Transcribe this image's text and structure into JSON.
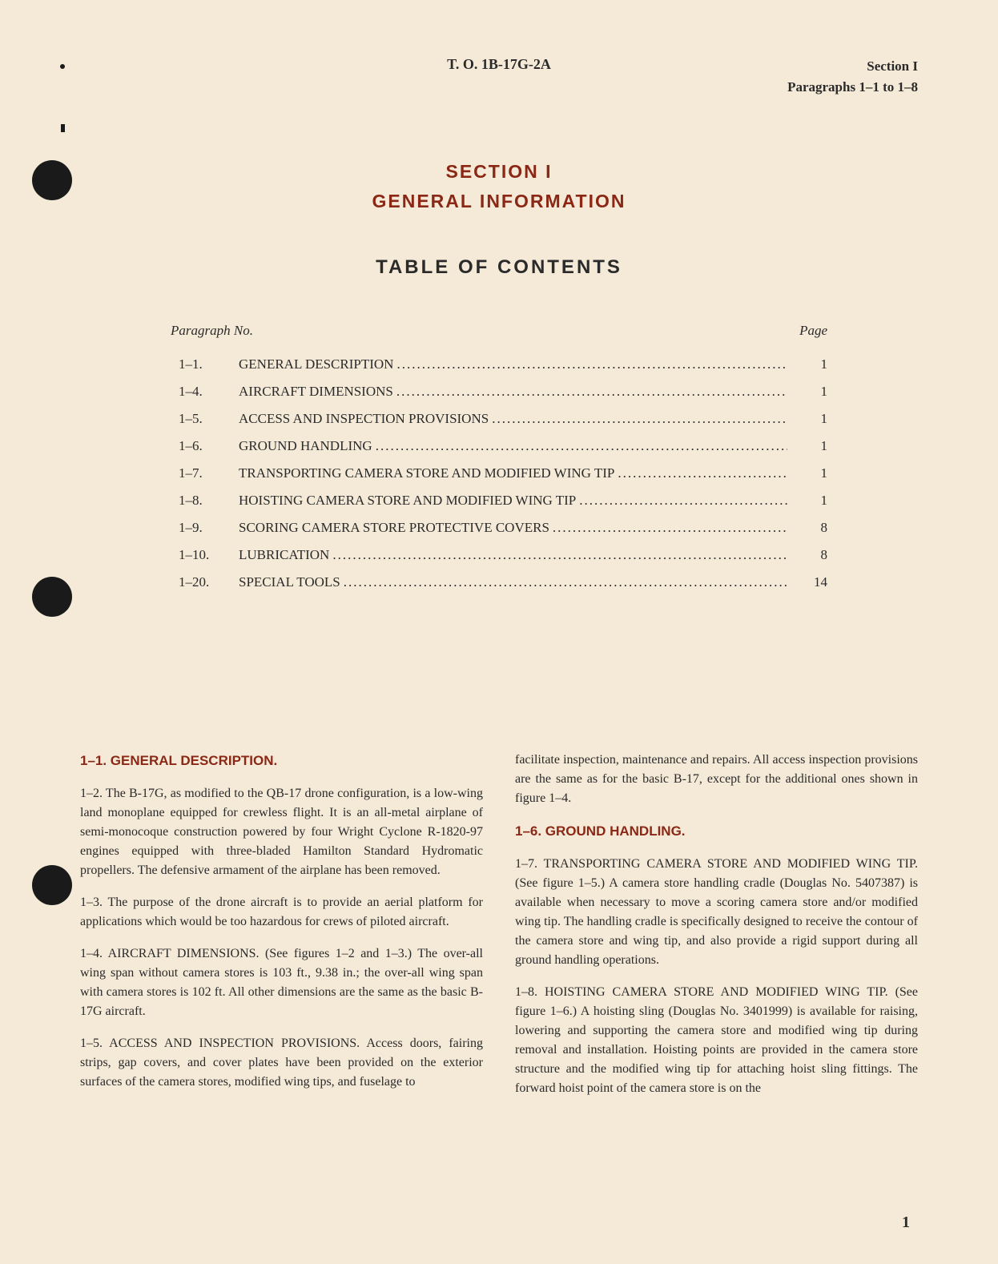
{
  "header": {
    "to_number": "T. O. 1B-17G-2A",
    "section_label": "Section I",
    "paragraphs_label": "Paragraphs 1–1 to 1–8"
  },
  "section": {
    "number": "SECTION I",
    "name": "GENERAL INFORMATION"
  },
  "toc": {
    "title": "TABLE OF CONTENTS",
    "header_left": "Paragraph No.",
    "header_right": "Page",
    "items": [
      {
        "para": "1–1.",
        "title": "GENERAL DESCRIPTION",
        "page": "1"
      },
      {
        "para": "1–4.",
        "title": "AIRCRAFT DIMENSIONS",
        "page": "1"
      },
      {
        "para": "1–5.",
        "title": "ACCESS AND INSPECTION PROVISIONS",
        "page": "1"
      },
      {
        "para": "1–6.",
        "title": "GROUND HANDLING",
        "page": "1"
      },
      {
        "para": "1–7.",
        "title": "TRANSPORTING CAMERA STORE AND MODIFIED WING TIP",
        "page": "1"
      },
      {
        "para": "1–8.",
        "title": "HOISTING CAMERA STORE AND MODIFIED WING TIP",
        "page": "1"
      },
      {
        "para": "1–9.",
        "title": "SCORING CAMERA STORE PROTECTIVE COVERS",
        "page": "8"
      },
      {
        "para": "1–10.",
        "title": "LUBRICATION",
        "page": "8"
      },
      {
        "para": "1–20.",
        "title": "SPECIAL TOOLS",
        "page": "14"
      }
    ]
  },
  "body": {
    "col1": {
      "heading1": "1–1. GENERAL DESCRIPTION.",
      "p1_2": "1–2. The B-17G, as modified to the QB-17 drone configuration, is a low-wing land monoplane equipped for crewless flight. It is an all-metal airplane of semi-monocoque construction powered by four Wright Cyclone R-1820-97 engines equipped with three-bladed Hamilton Standard Hydromatic propellers. The defensive armament of the airplane has been removed.",
      "p1_3": "1–3. The purpose of the drone aircraft is to provide an aerial platform for applications which would be too hazardous for crews of piloted aircraft.",
      "p1_4": "1–4. AIRCRAFT DIMENSIONS. (See figures 1–2 and 1–3.) The over-all wing span without camera stores is 103 ft., 9.38 in.; the over-all wing span with camera stores is 102 ft. All other dimensions are the same as the basic B-17G aircraft.",
      "p1_5": "1–5. ACCESS AND INSPECTION PROVISIONS. Access doors, fairing strips, gap covers, and cover plates have been provided on the exterior surfaces of the camera stores, modified wing tips, and fuselage to"
    },
    "col2": {
      "p_cont": "facilitate inspection, maintenance and repairs. All access inspection provisions are the same as for the basic B-17, except for the additional ones shown in figure 1–4.",
      "heading2": "1–6. GROUND HANDLING.",
      "p1_7": "1–7. TRANSPORTING CAMERA STORE AND MODIFIED WING TIP. (See figure 1–5.) A camera store handling cradle (Douglas No. 5407387) is available when necessary to move a scoring camera store and/or modified wing tip. The handling cradle is specifically designed to receive the contour of the camera store and wing tip, and also provide a rigid support during all ground handling operations.",
      "p1_8": "1–8. HOISTING CAMERA STORE AND MODIFIED WING TIP. (See figure 1–6.) A hoisting sling (Douglas No. 3401999) is available for raising, lowering and supporting the camera store and modified wing tip during removal and installation. Hoisting points are provided in the camera store structure and the modified wing tip for attaching hoist sling fittings. The forward hoist point of the camera store is on the"
    }
  },
  "page_number": "1",
  "colors": {
    "background": "#f5ead8",
    "text": "#2a2a2a",
    "accent": "#8a2815",
    "dot": "#1a1a1a"
  },
  "typography": {
    "body_font": "Georgia, Times New Roman, serif",
    "heading_font": "Arial, sans-serif",
    "body_fontsize": 16,
    "heading_fontsize": 23,
    "toc_fontsize": 17
  }
}
